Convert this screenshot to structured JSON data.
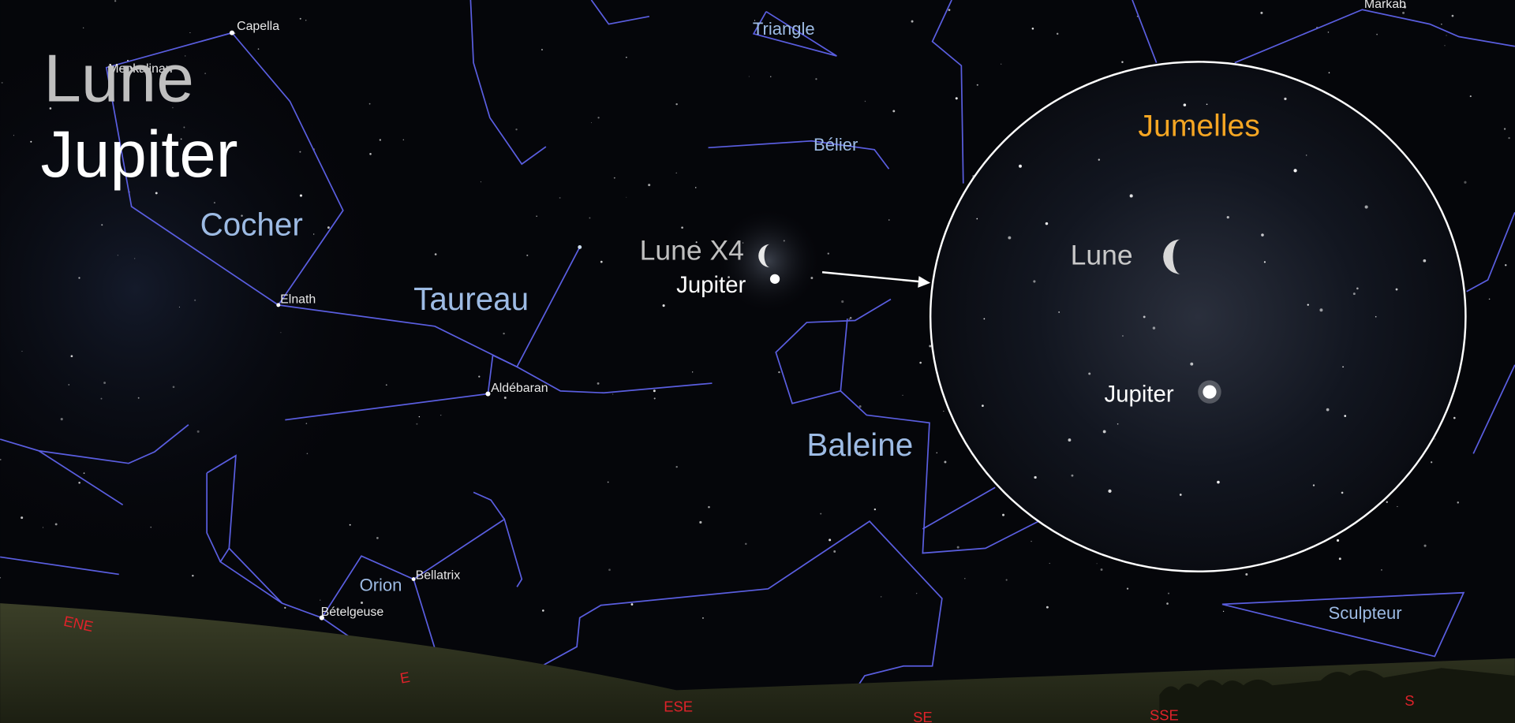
{
  "title": {
    "line1": "Lune",
    "line2": "Jupiter"
  },
  "constellations": [
    "Cocher",
    "Taureau",
    "Baleine",
    "Orion",
    "Triangle",
    "Bélier",
    "Sculpteur"
  ],
  "stars": [
    "Capella",
    "Menkalinan",
    "Elnath",
    "Aldébaran",
    "Bellatrix",
    "Bételgeuse",
    "Markab"
  ],
  "planets": {
    "moon": "Lune X4",
    "jupiter": "Jupiter"
  },
  "inset": {
    "title": "Jumelles",
    "moon": "Lune",
    "jupiter": "Jupiter"
  },
  "directions": [
    "ENE",
    "E",
    "ESE",
    "SE",
    "SSE",
    "S"
  ]
}
